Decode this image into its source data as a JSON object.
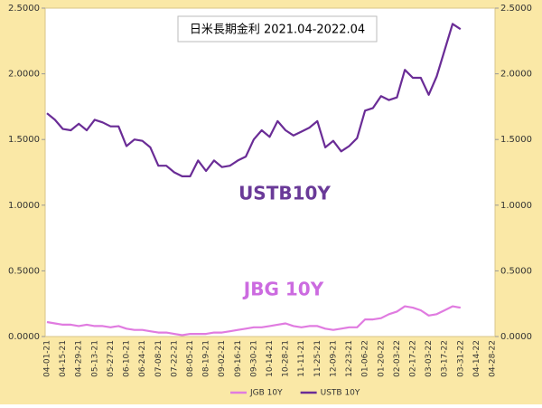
{
  "chart_data": {
    "type": "line",
    "title": "日米長期金利 2021.04-2022.04",
    "annotations": [
      "USTB10Y",
      "JBG 10Y"
    ],
    "categories": [
      "04-01-21",
      null,
      "04-15-21",
      null,
      "04-29-21",
      null,
      "05-13-21",
      null,
      "05-27-21",
      null,
      "06-10-21",
      null,
      "06-24-21",
      null,
      "07-08-21",
      null,
      "07-22-21",
      null,
      "08-05-21",
      null,
      "08-19-21",
      null,
      "09-02-21",
      null,
      "09-16-21",
      null,
      "09-30-21",
      null,
      "10-14-21",
      null,
      "10-28-21",
      null,
      "11-11-21",
      null,
      "11-25-21",
      null,
      "12-09-21",
      null,
      "12-23-21",
      null,
      "01-06-22",
      null,
      "01-20-22",
      null,
      "02-03-22",
      null,
      "02-17-22",
      null,
      "03-03-22",
      null,
      "03-17-22",
      null,
      "03-31-22",
      null,
      "04-14-22",
      null,
      "04-28-22"
    ],
    "series": [
      {
        "name": "JGB 10Y",
        "color": "#e07be0",
        "values": [
          0.11,
          0.1,
          0.09,
          0.09,
          0.08,
          0.09,
          0.08,
          0.08,
          0.07,
          0.08,
          0.06,
          0.05,
          0.05,
          0.04,
          0.03,
          0.03,
          0.02,
          0.01,
          0.02,
          0.02,
          0.02,
          0.03,
          0.03,
          0.04,
          0.05,
          0.06,
          0.07,
          0.07,
          0.08,
          0.09,
          0.1,
          0.08,
          0.07,
          0.08,
          0.08,
          0.06,
          0.05,
          0.06,
          0.07,
          0.07,
          0.13,
          0.13,
          0.14,
          0.17,
          0.19,
          0.23,
          0.22,
          0.2,
          0.16,
          0.17,
          0.2,
          0.23,
          0.22,
          null,
          null,
          null,
          null
        ]
      },
      {
        "name": "USTB 10Y",
        "color": "#6a2c96",
        "values": [
          1.7,
          1.65,
          1.58,
          1.57,
          1.62,
          1.57,
          1.65,
          1.63,
          1.6,
          1.6,
          1.45,
          1.5,
          1.49,
          1.44,
          1.3,
          1.3,
          1.25,
          1.22,
          1.22,
          1.34,
          1.26,
          1.34,
          1.29,
          1.3,
          1.34,
          1.37,
          1.5,
          1.57,
          1.52,
          1.64,
          1.57,
          1.53,
          1.56,
          1.59,
          1.64,
          1.44,
          1.49,
          1.41,
          1.45,
          1.51,
          1.72,
          1.74,
          1.83,
          1.8,
          1.82,
          2.03,
          1.97,
          1.97,
          1.84,
          1.98,
          2.18,
          2.38,
          2.34,
          null,
          null,
          null,
          null
        ]
      }
    ],
    "ylim": [
      0,
      2.5
    ],
    "yticks": [
      {
        "value": 0,
        "label": "0.0000"
      },
      {
        "value": 0.5,
        "label": "0.5000"
      },
      {
        "value": 1,
        "label": "1.0000"
      },
      {
        "value": 1.5,
        "label": "1.5000"
      },
      {
        "value": 2,
        "label": "2.0000"
      },
      {
        "value": 2.5,
        "label": "2.5000"
      }
    ],
    "y2lim": [
      0,
      2.5
    ],
    "y2ticks": [
      {
        "value": 0,
        "label": "0.0000"
      },
      {
        "value": 0.5,
        "label": "0.5000"
      },
      {
        "value": 1,
        "label": "1.0000"
      },
      {
        "value": 1.5,
        "label": "1.5000"
      },
      {
        "value": 2,
        "label": "2.0000"
      },
      {
        "value": 2.5,
        "label": "2.5000"
      }
    ],
    "grid": false,
    "legend": "bottom"
  }
}
